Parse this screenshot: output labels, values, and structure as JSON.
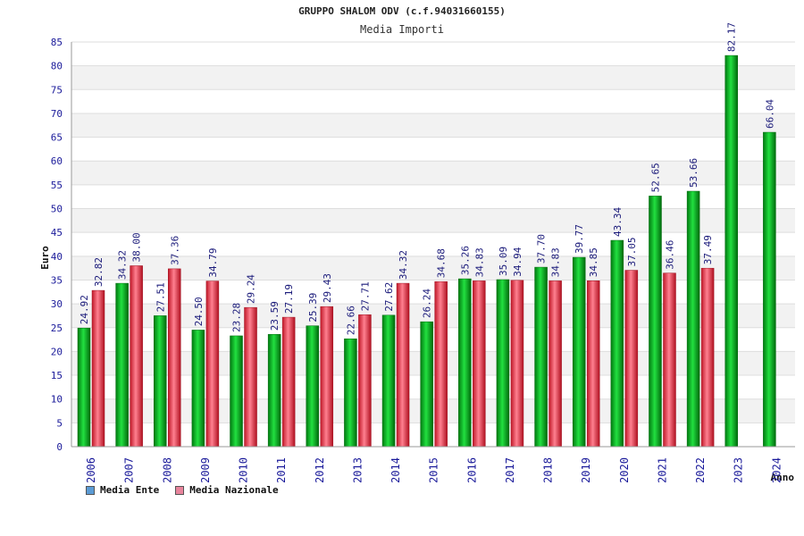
{
  "header": {
    "title": "GRUPPO SHALOM ODV (c.f.94031660155)",
    "subtitle": "Media Importi"
  },
  "legend": {
    "items": [
      {
        "label": "Media Ente",
        "color": "#5b9bd5"
      },
      {
        "label": "Media Nazionale",
        "color": "#e8849c"
      }
    ]
  },
  "chart_data": {
    "type": "bar",
    "ylabel": "Euro",
    "xlabel": "Anno",
    "ylim": [
      0,
      85
    ],
    "ytick_step": 5,
    "grid": true,
    "legend_position": "bottom-left",
    "categories": [
      "2006",
      "2007",
      "2008",
      "2009",
      "2010",
      "2011",
      "2012",
      "2013",
      "2014",
      "2015",
      "2016",
      "2017",
      "2018",
      "2019",
      "2020",
      "2021",
      "2022",
      "2023",
      "2024"
    ],
    "series": [
      {
        "name": "Media Ente",
        "color": "#00a020",
        "values": [
          24.92,
          34.32,
          27.51,
          24.5,
          23.28,
          23.59,
          25.39,
          22.66,
          27.62,
          26.24,
          35.26,
          35.09,
          37.7,
          39.77,
          43.34,
          52.65,
          53.66,
          82.17,
          66.04
        ],
        "labels": [
          "24.92",
          "34.32",
          "27.51",
          "24.50",
          "23.28",
          "23.59",
          "25.39",
          "22.66",
          "27.62",
          "26.24",
          "35.26",
          "35.09",
          "37.70",
          "39.77",
          "43.34",
          "52.65",
          "53.66",
          "82.17",
          "66.04"
        ]
      },
      {
        "name": "Media Nazionale",
        "color": "#e03040",
        "values": [
          32.82,
          38.0,
          37.36,
          34.79,
          29.24,
          27.19,
          29.43,
          27.71,
          34.32,
          34.68,
          34.83,
          34.94,
          34.83,
          34.85,
          37.05,
          36.46,
          37.49,
          null,
          null
        ],
        "labels": [
          "32.82",
          "38.00",
          "37.36",
          "34.79",
          "29.24",
          "27.19",
          "29.43",
          "27.71",
          "34.32",
          "34.68",
          "34.83",
          "34.94",
          "34.83",
          "34.85",
          "37.05",
          "36.46",
          "37.49",
          "",
          ""
        ]
      }
    ]
  }
}
